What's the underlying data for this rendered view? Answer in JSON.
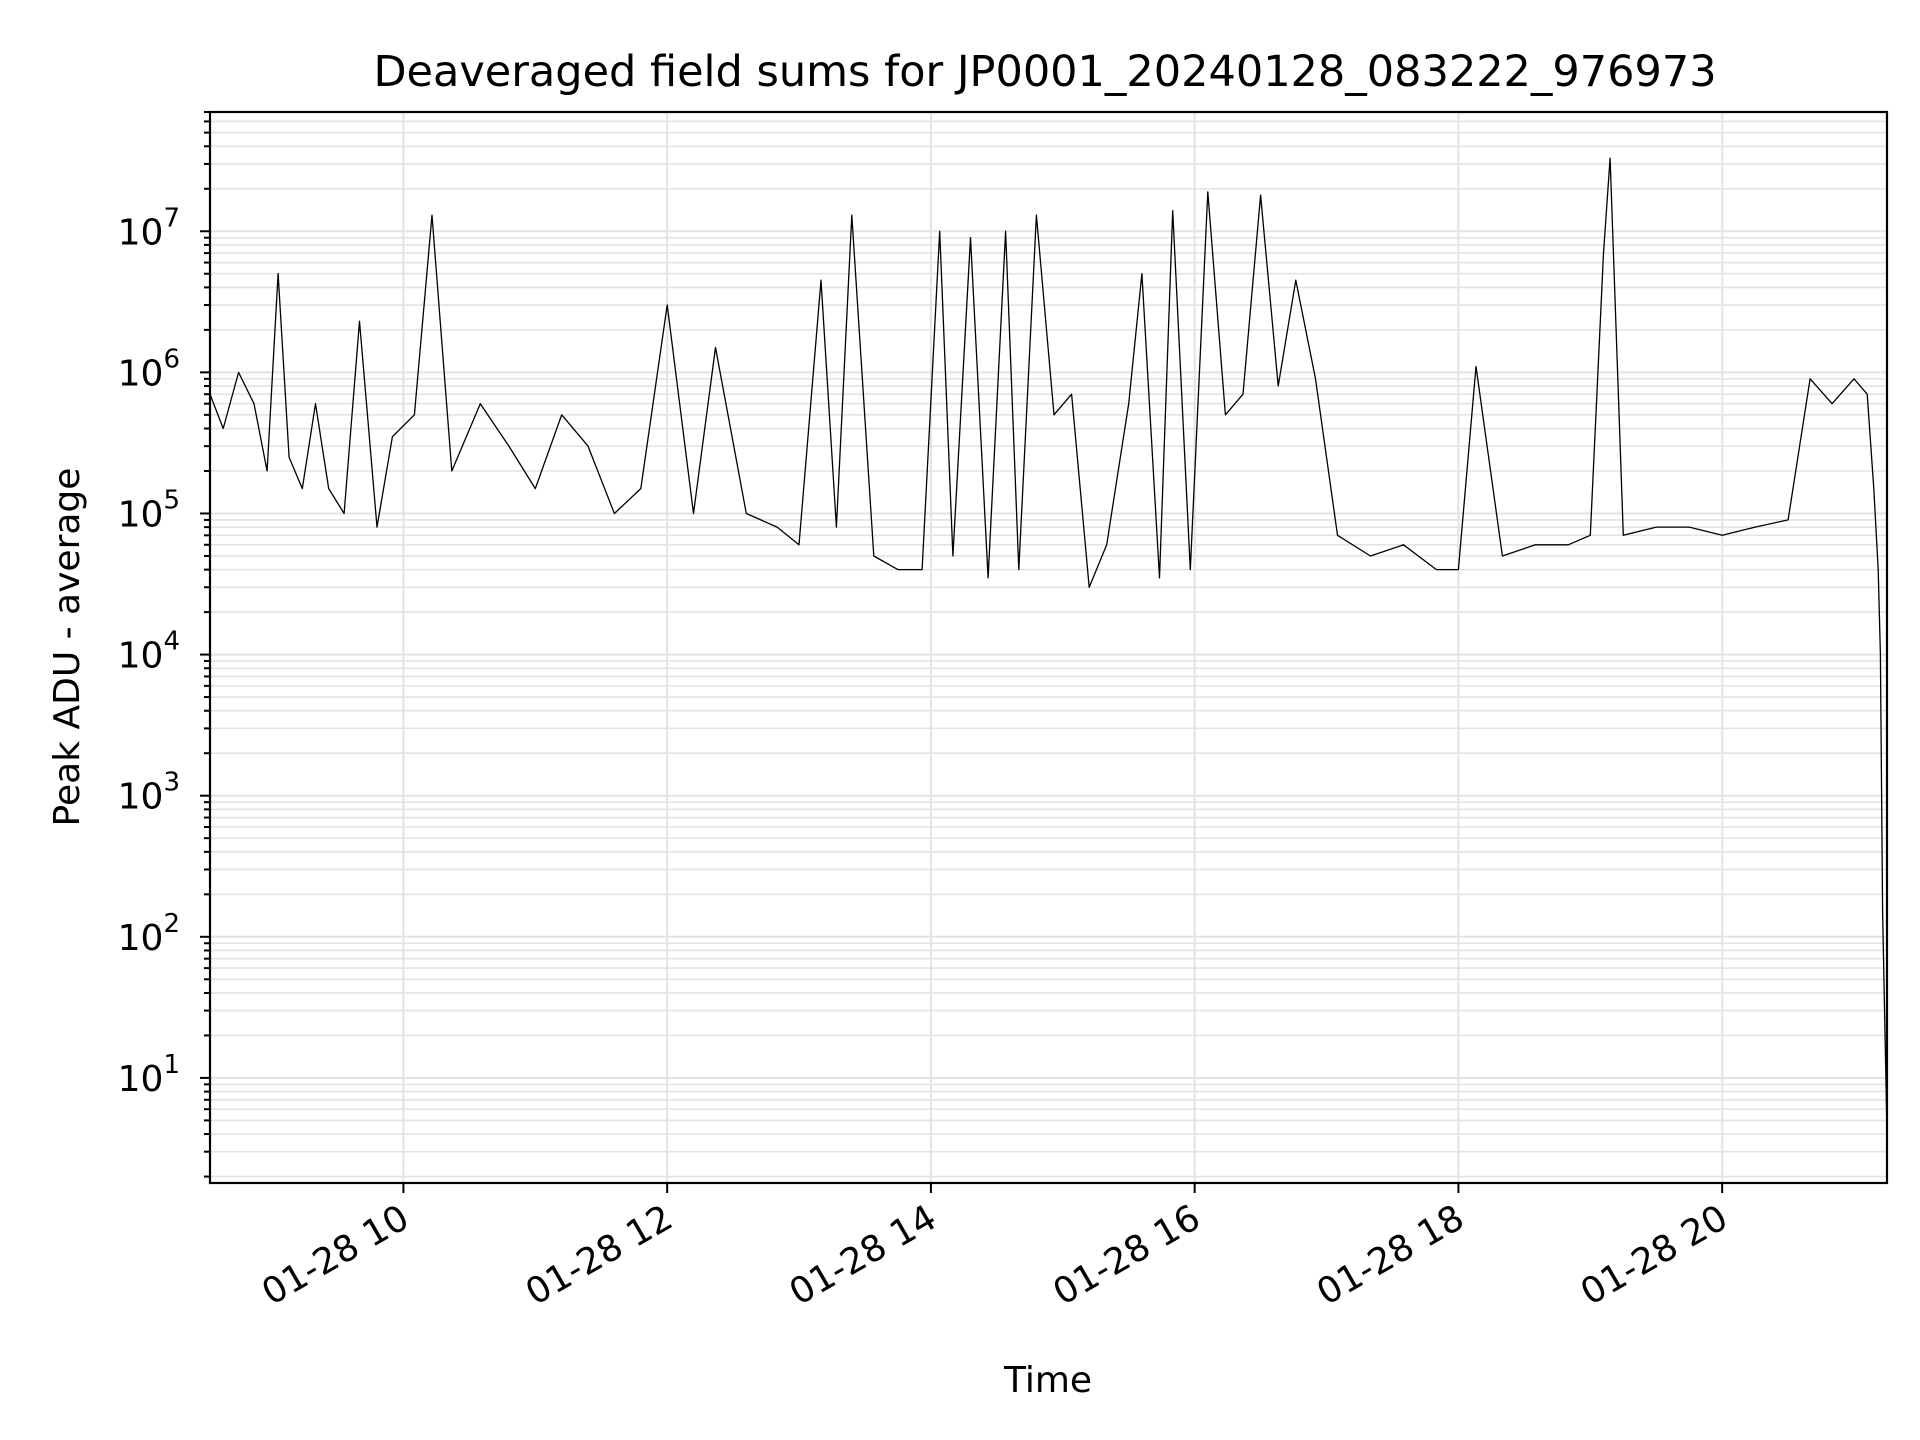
{
  "chart_data": {
    "type": "line",
    "title": "Deaveraged field sums for JP0001_20240128_083222_976973",
    "xlabel": "Time",
    "ylabel": "Peak ADU - average",
    "xlim": [
      "2024-01-28 08:32",
      "2024-01-28 21:15"
    ],
    "ylim": [
      1.8,
      70000000
    ],
    "yscale": "log",
    "grid": true,
    "x_tick_labels": [
      "01-28 10",
      "01-28 12",
      "01-28 14",
      "01-28 16",
      "01-28 18",
      "01-28 20"
    ],
    "y_tick_labels": [
      {
        "base": "10",
        "exp": "1"
      },
      {
        "base": "10",
        "exp": "2"
      },
      {
        "base": "10",
        "exp": "3"
      },
      {
        "base": "10",
        "exp": "4"
      },
      {
        "base": "10",
        "exp": "5"
      },
      {
        "base": "10",
        "exp": "6"
      },
      {
        "base": "10",
        "exp": "7"
      }
    ],
    "series": [
      {
        "color": "#000000",
        "x": [
          "2024-01-28 08:32",
          "2024-01-28 08:38",
          "2024-01-28 08:45",
          "2024-01-28 08:52",
          "2024-01-28 08:58",
          "2024-01-28 09:03",
          "2024-01-28 09:08",
          "2024-01-28 09:14",
          "2024-01-28 09:20",
          "2024-01-28 09:26",
          "2024-01-28 09:33",
          "2024-01-28 09:40",
          "2024-01-28 09:48",
          "2024-01-28 09:55",
          "2024-01-28 10:05",
          "2024-01-28 10:13",
          "2024-01-28 10:22",
          "2024-01-28 10:35",
          "2024-01-28 10:48",
          "2024-01-28 11:00",
          "2024-01-28 11:12",
          "2024-01-28 11:24",
          "2024-01-28 11:36",
          "2024-01-28 11:48",
          "2024-01-28 12:00",
          "2024-01-28 12:12",
          "2024-01-28 12:22",
          "2024-01-28 12:36",
          "2024-01-28 12:50",
          "2024-01-28 13:00",
          "2024-01-28 13:10",
          "2024-01-28 13:17",
          "2024-01-28 13:24",
          "2024-01-28 13:34",
          "2024-01-28 13:45",
          "2024-01-28 13:56",
          "2024-01-28 14:04",
          "2024-01-28 14:10",
          "2024-01-28 14:18",
          "2024-01-28 14:26",
          "2024-01-28 14:34",
          "2024-01-28 14:40",
          "2024-01-28 14:48",
          "2024-01-28 14:56",
          "2024-01-28 15:04",
          "2024-01-28 15:12",
          "2024-01-28 15:20",
          "2024-01-28 15:30",
          "2024-01-28 15:36",
          "2024-01-28 15:44",
          "2024-01-28 15:50",
          "2024-01-28 15:58",
          "2024-01-28 16:06",
          "2024-01-28 16:14",
          "2024-01-28 16:22",
          "2024-01-28 16:30",
          "2024-01-28 16:38",
          "2024-01-28 16:46",
          "2024-01-28 16:55",
          "2024-01-28 17:05",
          "2024-01-28 17:20",
          "2024-01-28 17:35",
          "2024-01-28 17:50",
          "2024-01-28 18:00",
          "2024-01-28 18:08",
          "2024-01-28 18:20",
          "2024-01-28 18:35",
          "2024-01-28 18:50",
          "2024-01-28 19:00",
          "2024-01-28 19:06",
          "2024-01-28 19:09",
          "2024-01-28 19:15",
          "2024-01-28 19:30",
          "2024-01-28 19:45",
          "2024-01-28 20:00",
          "2024-01-28 20:15",
          "2024-01-28 20:30",
          "2024-01-28 20:40",
          "2024-01-28 20:50",
          "2024-01-28 21:00",
          "2024-01-28 21:06",
          "2024-01-28 21:09",
          "2024-01-28 21:11",
          "2024-01-28 21:12",
          "2024-01-28 21:13",
          "2024-01-28 21:15"
        ],
        "y": [
          700000,
          400000,
          1000000,
          600000,
          200000,
          5000000,
          250000,
          150000,
          600000,
          150000,
          100000,
          2300000,
          80000,
          350000,
          500000,
          13000000,
          200000,
          600000,
          300000,
          150000,
          500000,
          300000,
          100000,
          150000,
          3000000,
          100000,
          1500000,
          100000,
          80000,
          60000,
          4500000,
          80000,
          13000000,
          50000,
          40000,
          40000,
          10000000,
          50000,
          9000000,
          35000,
          10000000,
          40000,
          13000000,
          500000,
          700000,
          30000,
          60000,
          600000,
          5000000,
          35000,
          14000000,
          40000,
          19000000,
          500000,
          700000,
          18000000,
          800000,
          4500000,
          900000,
          70000,
          50000,
          60000,
          40000,
          40000,
          1100000,
          50000,
          60000,
          60000,
          70000,
          7000000,
          33000000,
          70000,
          80000,
          80000,
          70000,
          80000,
          90000,
          900000,
          600000,
          900000,
          700000,
          150000,
          40000,
          10000,
          150,
          4
        ]
      }
    ]
  }
}
